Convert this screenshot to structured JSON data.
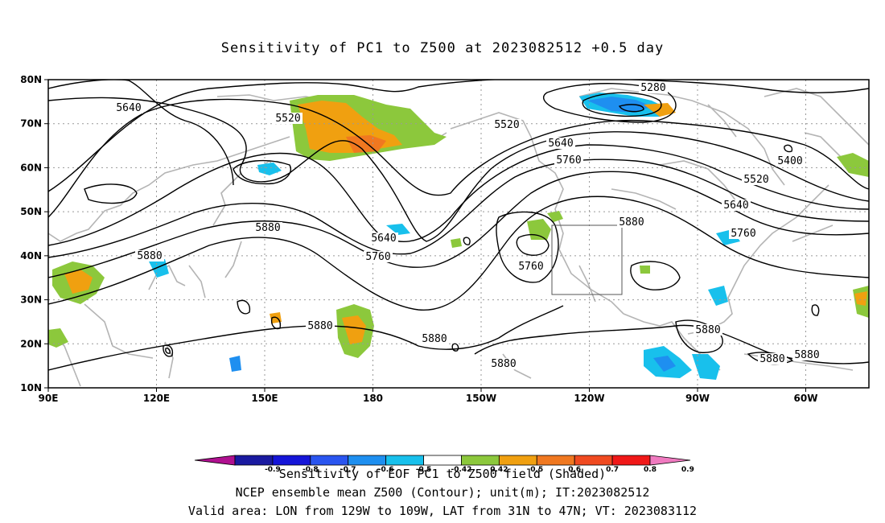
{
  "title": "Sensitivity of PC1 to Z500 at 2023082512 +0.5 day",
  "axes": {
    "lat_labels": [
      "80N",
      "70N",
      "60N",
      "50N",
      "40N",
      "30N",
      "20N",
      "10N"
    ],
    "lon_labels": [
      "90E",
      "120E",
      "150E",
      "180",
      "150W",
      "120W",
      "90W",
      "60W"
    ]
  },
  "contour_labels": [
    "5640",
    "5520",
    "5280",
    "5520",
    "5640",
    "5760",
    "5400",
    "5520",
    "5640",
    "5760",
    "5880",
    "5880",
    "5640",
    "5760",
    "5760",
    "5880",
    "5880",
    "5880",
    "5880",
    "5880",
    "5880",
    "5880"
  ],
  "colorbar": {
    "tick_labels": [
      "-0.9",
      "-0.8",
      "-0.7",
      "-0.6",
      "-0.5",
      "-0.42",
      "0.42",
      "0.5",
      "0.6",
      "0.7",
      "0.8",
      "0.9"
    ],
    "colors": [
      "#b01090",
      "#1a1aa0",
      "#1515d8",
      "#2a55f0",
      "#1e8ff0",
      "#18c0ec",
      "#ffffff",
      "#8cc83c",
      "#f0a010",
      "#f07820",
      "#f04a20",
      "#f01818",
      "#f07ac0"
    ]
  },
  "footer": {
    "line1": "Sensitivity of EOF PC1 to Z500 field (Shaded)",
    "line2": "NCEP ensemble mean Z500 (Contour); unit(m); IT:2023082512",
    "line3": "Valid area: LON from 129W to 109W, LAT from 31N to 47N; VT: 2023083112"
  }
}
